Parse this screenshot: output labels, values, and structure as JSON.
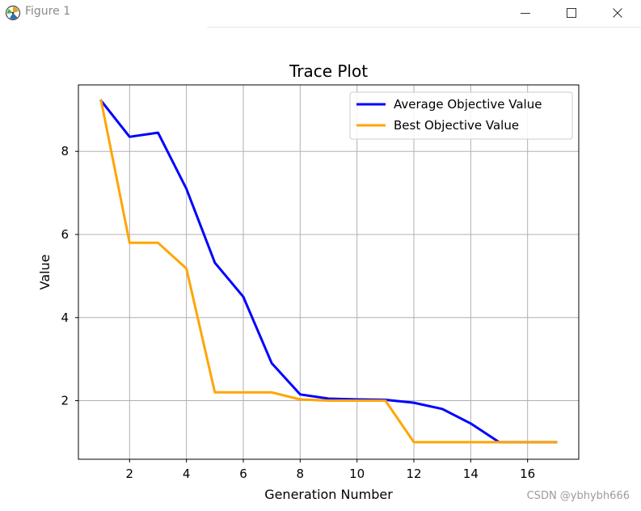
{
  "window": {
    "title": "Figure 1",
    "icons": {
      "app": "matplotlib-icon",
      "minimize": "minimize-icon",
      "maximize": "maximize-icon",
      "close": "close-icon"
    }
  },
  "chart_data": {
    "type": "line",
    "title": "Trace Plot",
    "xlabel": "Generation Number",
    "ylabel": "Value",
    "xlim": [
      0.2,
      17.8
    ],
    "ylim": [
      0.59,
      9.6
    ],
    "xticks": [
      2,
      4,
      6,
      8,
      10,
      12,
      14,
      16
    ],
    "yticks": [
      2,
      4,
      6,
      8
    ],
    "grid": true,
    "legend_position": "upper right",
    "x": [
      1,
      2,
      3,
      4,
      5,
      6,
      7,
      8,
      9,
      10,
      11,
      12,
      13,
      14,
      15,
      16,
      17
    ],
    "series": [
      {
        "name": "Average Objective Value",
        "color": "#0000ff",
        "values": [
          9.22,
          8.35,
          8.45,
          7.1,
          5.32,
          4.5,
          2.9,
          2.15,
          2.05,
          2.03,
          2.02,
          1.95,
          1.8,
          1.45,
          1.0,
          1.0,
          1.0
        ]
      },
      {
        "name": "Best Objective Value",
        "color": "#ffa500",
        "values": [
          9.22,
          5.8,
          5.8,
          5.18,
          2.2,
          2.2,
          2.2,
          2.03,
          2.0,
          2.0,
          2.0,
          1.0,
          1.0,
          1.0,
          1.0,
          1.0,
          1.0
        ]
      }
    ]
  },
  "watermark": "CSDN @ybhybh666"
}
